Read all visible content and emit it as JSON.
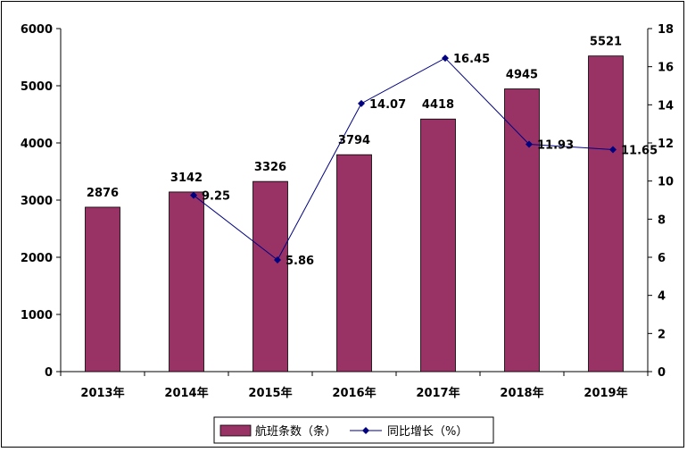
{
  "chart_data": {
    "type": "bar+line",
    "categories": [
      "2013年",
      "2014年",
      "2015年",
      "2016年",
      "2017年",
      "2018年",
      "2019年"
    ],
    "series": [
      {
        "name": "航班条数（条）",
        "type": "bar",
        "axis": "left",
        "values": [
          2876,
          3142,
          3326,
          3794,
          4418,
          4945,
          5521
        ],
        "labels": [
          "2876",
          "3142",
          "3326",
          "3794",
          "4418",
          "4945",
          "5521"
        ]
      },
      {
        "name": "同比增长（%）",
        "type": "line",
        "axis": "right",
        "values": [
          null,
          9.25,
          5.86,
          14.07,
          16.45,
          11.93,
          11.65
        ],
        "labels": [
          "",
          "9.25",
          "5.86",
          "14.07",
          "16.45",
          "11.93",
          "11.65"
        ]
      }
    ],
    "ylim_left": [
      0,
      6000
    ],
    "yticks_left": [
      "0",
      "1000",
      "2000",
      "3000",
      "4000",
      "5000",
      "6000"
    ],
    "ylim_right": [
      0,
      18
    ],
    "yticks_right": [
      "0",
      "2",
      "4",
      "6",
      "8",
      "10",
      "12",
      "14",
      "16",
      "18"
    ],
    "grid": false,
    "legend_position": "bottom-center",
    "colors": {
      "bar": "#993366",
      "line": "#000080"
    }
  }
}
